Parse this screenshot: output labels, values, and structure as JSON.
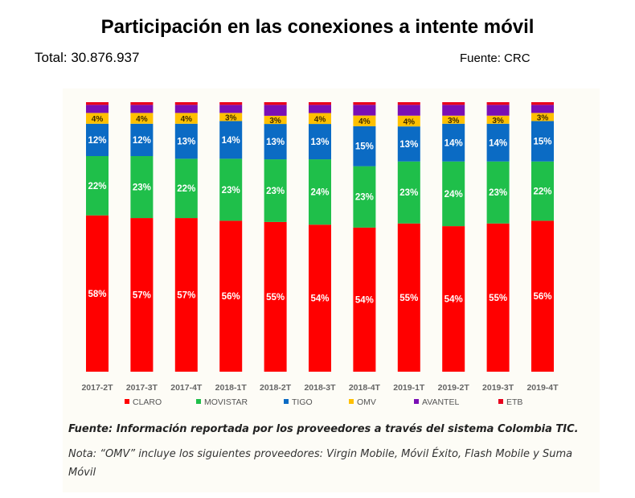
{
  "header": {
    "title": "Participación en las conexiones a intente móvil",
    "total": "Total: 30.876.937",
    "source": "Fuente: CRC"
  },
  "footnotes": {
    "line1": "Fuente: Información reportada por los proveedores a través del sistema Colombia TIC.",
    "line2": "Nota: “OMV” incluye los siguientes proveedores: Virgin Mobile, Móvil Éxito, Flash Mobile y Suma Móvil"
  },
  "chart_data": {
    "type": "bar",
    "stacked": true,
    "normalized_percent": true,
    "categories": [
      "2017-2T",
      "2017-3T",
      "2017-4T",
      "2018-1T",
      "2018-2T",
      "2018-3T",
      "2018-4T",
      "2019-1T",
      "2019-2T",
      "2019-3T",
      "2019-4T"
    ],
    "series": [
      {
        "name": "CLARO",
        "color": "#ff0000",
        "values": [
          58,
          57,
          57,
          56,
          55,
          54,
          54,
          55,
          54,
          55,
          56
        ],
        "labels": [
          "58%",
          "57%",
          "57%",
          "56%",
          "55%",
          "54%",
          "54%",
          "55%",
          "54%",
          "55%",
          "56%"
        ]
      },
      {
        "name": "MOVISTAR",
        "color": "#1fbf4a",
        "values": [
          22,
          23,
          22,
          23,
          23,
          24,
          23,
          23,
          24,
          23,
          22
        ],
        "labels": [
          "22%",
          "23%",
          "22%",
          "23%",
          "23%",
          "24%",
          "23%",
          "23%",
          "24%",
          "23%",
          "22%"
        ]
      },
      {
        "name": "TIGO",
        "color": "#0b6bc4",
        "values": [
          12,
          12,
          13,
          14,
          13,
          13,
          15,
          13,
          14,
          14,
          15
        ],
        "labels": [
          "12%",
          "12%",
          "13%",
          "14%",
          "13%",
          "13%",
          "15%",
          "13%",
          "14%",
          "14%",
          "15%"
        ]
      },
      {
        "name": "OMV",
        "color": "#ffc000",
        "values": [
          4,
          4,
          4,
          3,
          3,
          4,
          4,
          4,
          3,
          3,
          3
        ],
        "labels": [
          "4%",
          "4%",
          "4%",
          "3%",
          "3%",
          "4%",
          "4%",
          "4%",
          "3%",
          "3%",
          "3%"
        ]
      },
      {
        "name": "AVANTEL",
        "color": "#7a0fb5",
        "values": [
          3,
          3,
          3,
          3,
          4,
          3,
          4,
          4,
          4,
          4,
          3
        ],
        "labels": []
      },
      {
        "name": "ETB",
        "color": "#e8001c",
        "values": [
          1,
          1,
          1,
          1,
          1,
          1,
          1,
          1,
          1,
          1,
          1
        ],
        "labels": []
      }
    ],
    "ylim": [
      0,
      100
    ],
    "xlabel": "",
    "ylabel": "",
    "legend": {
      "position": "bottom"
    },
    "grid": false
  }
}
